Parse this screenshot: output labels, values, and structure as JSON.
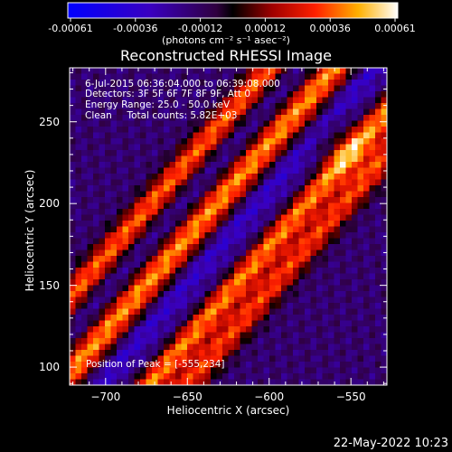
{
  "colorbar": {
    "ticks": [
      "-0.00061",
      "-0.00036",
      "-0.00012",
      "0.00012",
      "0.00036",
      "0.00061"
    ],
    "unit_label": "(photons cm⁻² s⁻¹ asec⁻²)",
    "range": [
      -0.00061,
      0.00061
    ]
  },
  "chart_data": {
    "type": "heatmap",
    "title": "Reconstructed RHESSI Image",
    "xlabel": "Heliocentric X (arcsec)",
    "ylabel": "Heliocentric Y (arcsec)",
    "xlim": [
      -722,
      -528
    ],
    "ylim": [
      89,
      283
    ],
    "xticks": [
      -700,
      -650,
      -600,
      -550
    ],
    "yticks": [
      100,
      150,
      200,
      250
    ],
    "xtick_labels": [
      "−700",
      "−650",
      "−600",
      "−550"
    ],
    "ytick_labels": [
      "100",
      "150",
      "200",
      "250"
    ],
    "colormap": "rhessi-blue-black-red-yellow-white",
    "peak": [
      -555,
      234
    ],
    "peak_value": 0.00061,
    "annotations": {
      "line1": "6-Jul-2015 06:36:04.000 to 06:39:08.000",
      "line2": "Detectors: 3F 5F 6F 7F 8F 9F, Att 0",
      "line3": "Energy Range: 25.0 - 50.0 keV",
      "line4": "Clean     Total counts: 5.82E+03",
      "peak_text": "Position of Peak = [-555,234]"
    }
  },
  "footer": {
    "date": "22-May-2022 10:23"
  }
}
